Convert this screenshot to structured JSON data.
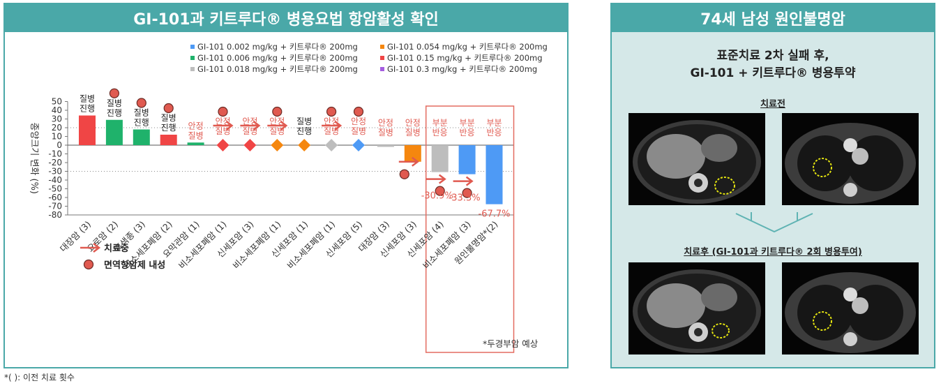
{
  "left_panel": {
    "title": "GI-101과 키트루다® 병용요법 항암활성 확인"
  },
  "right_panel": {
    "title": "74세 남성 원인불명암",
    "subtitle_line1": "표준치료 2차 실패 후,",
    "subtitle_line2": "GI-101 + 키트루다® 병용투약",
    "before_label": "치료전",
    "after_label": "치료후 (GI-101과 키트루다® 2회 병용투여)"
  },
  "footnote": "*( ): 이전 치료 횟수",
  "colors": {
    "teal": "#4aa8a8",
    "blue": "#4e9af5",
    "green": "#1fb26b",
    "gray": "#bdbdbd",
    "orange": "#f5870f",
    "red": "#f04545",
    "purple": "#a55de0",
    "annotation_red": "#e05a50"
  },
  "chart_data": {
    "type": "bar",
    "ylabel": "종양크기 변화 (%)",
    "ylim": [
      -80,
      50
    ],
    "yticks": [
      50,
      40,
      30,
      20,
      10,
      0,
      -10,
      -20,
      -30,
      -40,
      -50,
      -60,
      -70,
      -80
    ],
    "reference_lines": [
      20,
      -30
    ],
    "legend": [
      {
        "label": "GI-101 0.002 mg/kg + 키트루다® 200mg",
        "color": "#4e9af5"
      },
      {
        "label": "GI-101 0.006 mg/kg + 키트루다® 200mg",
        "color": "#1fb26b"
      },
      {
        "label": "GI-101 0.018 mg/kg + 키트루다® 200mg",
        "color": "#bdbdbd"
      },
      {
        "label": "GI-101 0.054 mg/kg + 키트루다® 200mg",
        "color": "#f5870f"
      },
      {
        "label": "GI-101 0.15 mg/kg + 키트루다® 200mg",
        "color": "#f04545"
      },
      {
        "label": "GI-101 0.3 mg/kg + 키트루다® 200mg",
        "color": "#a55de0"
      }
    ],
    "bars": [
      {
        "category": "대장암 (3)",
        "value": 34,
        "color": "#f04545",
        "label": [
          "질병",
          "진행"
        ],
        "label_color": "#222",
        "marker": "none",
        "resistance": false,
        "arrow": false
      },
      {
        "category": "요로암 (2)",
        "value": 29,
        "color": "#1fb26b",
        "label": [
          "질병",
          "진행"
        ],
        "label_color": "#222",
        "marker": "none",
        "resistance": true,
        "arrow": false
      },
      {
        "category": "흑색종 (3)",
        "value": 18,
        "color": "#1fb26b",
        "label": [
          "질병",
          "진행"
        ],
        "label_color": "#222",
        "marker": "none",
        "resistance": true,
        "arrow": false
      },
      {
        "category": "비소세포폐암 (2)",
        "value": 12,
        "color": "#f04545",
        "label": [
          "질병",
          "진행"
        ],
        "label_color": "#222",
        "marker": "none",
        "resistance": true,
        "arrow": false
      },
      {
        "category": "요막관암 (1)",
        "value": 3,
        "color": "#1fb26b",
        "label": [
          "안정",
          "질병"
        ],
        "label_color": "#e05a50",
        "marker": "none",
        "resistance": false,
        "arrow": false
      },
      {
        "category": "비소세포폐암 (1)",
        "value": 0,
        "color": "#f04545",
        "label": [
          "안정",
          "질병"
        ],
        "label_color": "#e05a50",
        "marker": "diamond",
        "resistance": true,
        "arrow": true
      },
      {
        "category": "신세포암 (3)",
        "value": 0,
        "color": "#f04545",
        "label": [
          "안정",
          "질병"
        ],
        "label_color": "#e05a50",
        "marker": "diamond",
        "resistance": false,
        "arrow": true
      },
      {
        "category": "비소세포폐암 (1)",
        "value": 0,
        "color": "#f5870f",
        "label": [
          "안정",
          "질병"
        ],
        "label_color": "#e05a50",
        "marker": "diamond",
        "resistance": true,
        "arrow": true
      },
      {
        "category": "신세포암 (1)",
        "value": 0,
        "color": "#f5870f",
        "label": [
          "질병",
          "진행"
        ],
        "label_color": "#222",
        "marker": "diamond",
        "resistance": false,
        "arrow": false
      },
      {
        "category": "비소세포폐암 (1)",
        "value": 0,
        "color": "#bdbdbd",
        "label": [
          "안정",
          "질병"
        ],
        "label_color": "#e05a50",
        "marker": "diamond",
        "resistance": true,
        "arrow": true
      },
      {
        "category": "신세포암 (5)",
        "value": 0,
        "color": "#4e9af5",
        "label": [
          "안정",
          "질병"
        ],
        "label_color": "#e05a50",
        "marker": "diamond",
        "resistance": true,
        "arrow": false
      },
      {
        "category": "대장암 (3)",
        "value": -2,
        "color": "#bdbdbd",
        "label": [
          "안정",
          "질병"
        ],
        "label_color": "#e05a50",
        "marker": "none",
        "resistance": false,
        "arrow": false
      },
      {
        "category": "신세포암 (3)",
        "value": -19,
        "color": "#f5870f",
        "label": [
          "안정",
          "질병"
        ],
        "label_color": "#e05a50",
        "marker": "none",
        "resistance": true,
        "arrow": true
      },
      {
        "category": "신세포암 (4)",
        "value": -30.9,
        "color": "#bdbdbd",
        "label": [
          "부분",
          "반응"
        ],
        "label_color": "#e05a50",
        "marker": "none",
        "resistance": true,
        "arrow": true,
        "value_label": "-30.9%"
      },
      {
        "category": "비소세포폐암 (3)",
        "value": -33.3,
        "color": "#4e9af5",
        "label": [
          "부분",
          "반응"
        ],
        "label_color": "#e05a50",
        "marker": "none",
        "resistance": true,
        "arrow": true,
        "value_label": "-33.3%"
      },
      {
        "category": "원인불명암*(2)",
        "value": -67.7,
        "color": "#4e9af5",
        "label": [
          "부분",
          "반응"
        ],
        "label_color": "#e05a50",
        "marker": "none",
        "resistance": false,
        "arrow": false,
        "value_label": "-67.7%"
      }
    ],
    "annotation_legend": [
      {
        "symbol": "arrow",
        "label": "치료중"
      },
      {
        "symbol": "circle",
        "label": "면역항암제 내성"
      }
    ],
    "note": "*두경부암 예상"
  }
}
